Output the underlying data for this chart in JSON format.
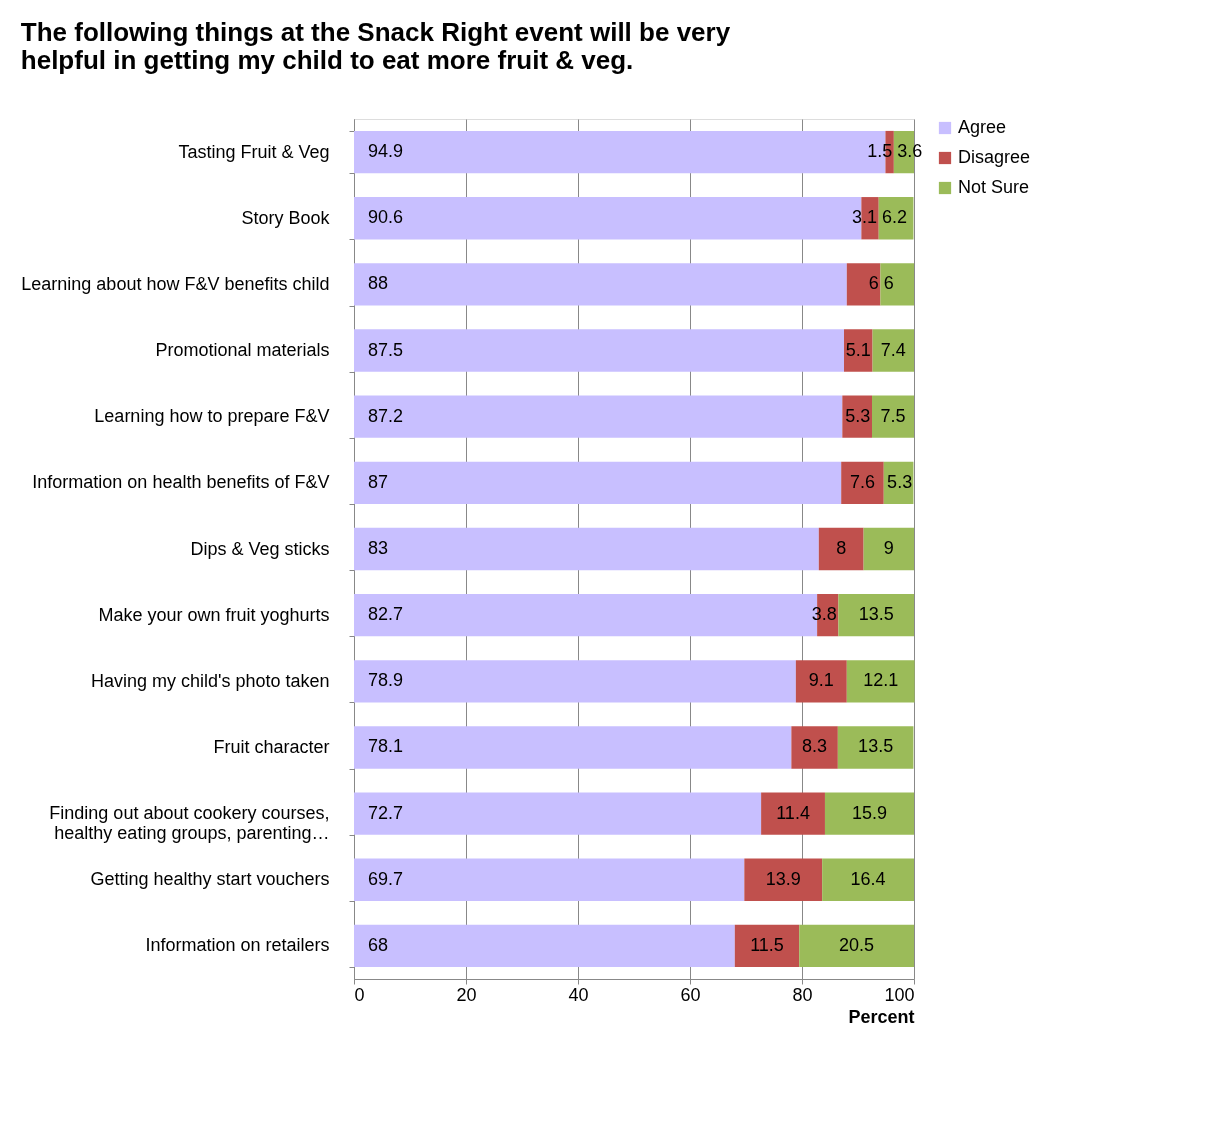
{
  "chart_data": {
    "type": "bar",
    "orientation": "horizontal",
    "stacked": true,
    "title": "The following  things at the Snack Right event will be very\nhelpful in getting my child to eat more fruit & veg.",
    "xlabel": "Percent",
    "categories": [
      "Tasting Fruit & Veg",
      "Story Book",
      "Learning about how F&V benefits child",
      "Promotional materials",
      "Learning how to prepare F&V",
      "Information on health benefits of F&V",
      "Dips & Veg sticks",
      "Make your own fruit yoghurts",
      "Having my child's photo taken",
      "Fruit character",
      "Finding out about cookery courses,\nhealthy eating groups, parenting…",
      "Getting healthy start vouchers",
      "Information on retailers"
    ],
    "series": [
      {
        "name": "Agree",
        "color": "#c8bfff",
        "values": [
          94.9,
          90.6,
          88,
          87.5,
          87.2,
          87,
          83,
          82.7,
          78.9,
          78.1,
          72.7,
          69.7,
          68
        ]
      },
      {
        "name": "Disagree",
        "color": "#c0504d",
        "values": [
          1.5,
          3.1,
          6,
          5.1,
          5.3,
          7.6,
          8,
          3.8,
          9.1,
          8.3,
          11.4,
          13.9,
          11.5
        ]
      },
      {
        "name": "Not Sure",
        "color": "#9bbb59",
        "values": [
          3.6,
          6.2,
          6,
          7.4,
          7.5,
          5.3,
          9,
          13.5,
          12.1,
          13.5,
          15.9,
          16.4,
          20.5
        ]
      }
    ],
    "xlim": [
      0,
      100
    ],
    "xticks": [
      0,
      20,
      40,
      60,
      80,
      100
    ],
    "grid": "x",
    "legend": "right",
    "data_labels": true
  }
}
